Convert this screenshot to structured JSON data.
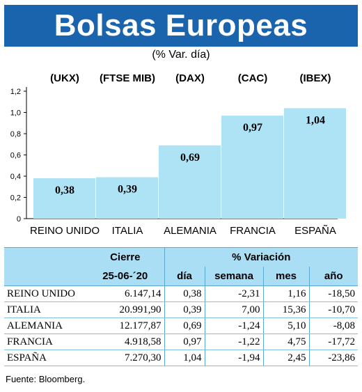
{
  "header": {
    "title": "Bolsas Europeas",
    "subtitle": "(% Var. día)"
  },
  "colors": {
    "header_bg": "#1a63ad",
    "bar_fill": "#aee2f5",
    "table_header_bg": "#a9def4"
  },
  "chart_data": {
    "type": "bar",
    "title": "Bolsas Europeas",
    "subtitle": "(% Var. día)",
    "categories": [
      "REINO UNIDO",
      "ITALIA",
      "ALEMANIA",
      "FRANCIA",
      "ESPAÑA"
    ],
    "index_labels": [
      "(UKX)",
      "(FTSE MIB)",
      "(DAX)",
      "(CAC)",
      "(IBEX)"
    ],
    "values": [
      0.38,
      0.39,
      0.69,
      0.97,
      1.04
    ],
    "value_labels": [
      "0,38",
      "0,39",
      "0,69",
      "0,97",
      "1,04"
    ],
    "ylim": [
      0,
      1.2
    ],
    "yticks": [
      0,
      0.2,
      0.4,
      0.6,
      0.8,
      1.0,
      1.2
    ],
    "ytick_labels": [
      "0",
      "0,2",
      "0,4",
      "0,6",
      "0,8",
      "1,0",
      "1,2"
    ],
    "grid": false,
    "legend": "none"
  },
  "table": {
    "header_group_left": "Cierre",
    "header_date": "25-06-´20",
    "header_group_right": "% Variación",
    "columns": [
      "día",
      "semana",
      "mes",
      "año"
    ],
    "rows": [
      {
        "name": "REINO UNIDO",
        "cierre": "6.147,14",
        "dia": "0,38",
        "semana": "-2,31",
        "mes": "1,16",
        "ano": "-18,50"
      },
      {
        "name": "ITALIA",
        "cierre": "20.991,90",
        "dia": "0,39",
        "semana": "7,00",
        "mes": "15,36",
        "ano": "-10,70"
      },
      {
        "name": "ALEMANIA",
        "cierre": "12.177,87",
        "dia": "0,69",
        "semana": "-1,24",
        "mes": "5,10",
        "ano": "-8,08"
      },
      {
        "name": "FRANCIA",
        "cierre": "4.918,58",
        "dia": "0,97",
        "semana": "-1,22",
        "mes": "4,75",
        "ano": "-17,72"
      },
      {
        "name": "ESPAÑA",
        "cierre": "7.270,30",
        "dia": "1,04",
        "semana": "-1,94",
        "mes": "2,45",
        "ano": "-23,86"
      }
    ]
  },
  "source": "Fuente: Bloomberg."
}
